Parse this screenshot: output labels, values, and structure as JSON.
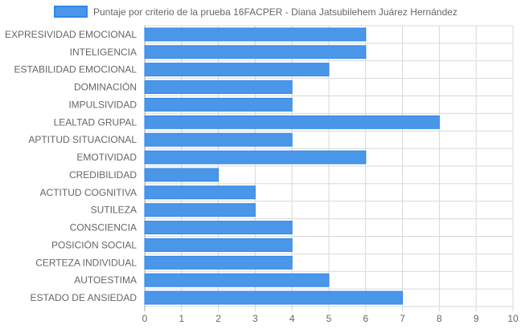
{
  "chart_data": {
    "type": "bar",
    "orientation": "horizontal",
    "categories": [
      "EXPRESIVIDAD EMOCIONAL",
      "INTELIGENCIA",
      "ESTABILIDAD EMOCIONAL",
      "DOMINACIÓN",
      "IMPULSIVIDAD",
      "LEALTAD GRUPAL",
      "APTITUD SITUACIONAL",
      "EMOTIVIDAD",
      "CREDIBILIDAD",
      "ACTITUD COGNITIVA",
      "SUTILEZA",
      "CONSCIENCIA",
      "POSICIÓN SOCIAL",
      "CERTEZA INDIVIDUAL",
      "AUTOESTIMA",
      "ESTADO DE ANSIEDAD"
    ],
    "series": [
      {
        "name": "Puntaje por criterio de la prueba 16FACPER - Diana Jatsubilehem Juárez Hernández",
        "values": [
          6,
          6,
          5,
          4,
          4,
          8,
          4,
          6,
          2,
          3,
          3,
          4,
          4,
          4,
          5,
          7
        ]
      }
    ],
    "xlim": [
      0,
      10
    ],
    "x_ticks": [
      "0",
      "1",
      "2",
      "3",
      "4",
      "5",
      "6",
      "7",
      "8",
      "9",
      "10"
    ],
    "grid": true,
    "legend_position": "top",
    "colors": {
      "bar_fill": "#4a97ea",
      "bar_border": "#2f86e6",
      "grid": "#d9d9d9",
      "grid_strong": "#a8a8a8",
      "text": "#666666"
    }
  }
}
